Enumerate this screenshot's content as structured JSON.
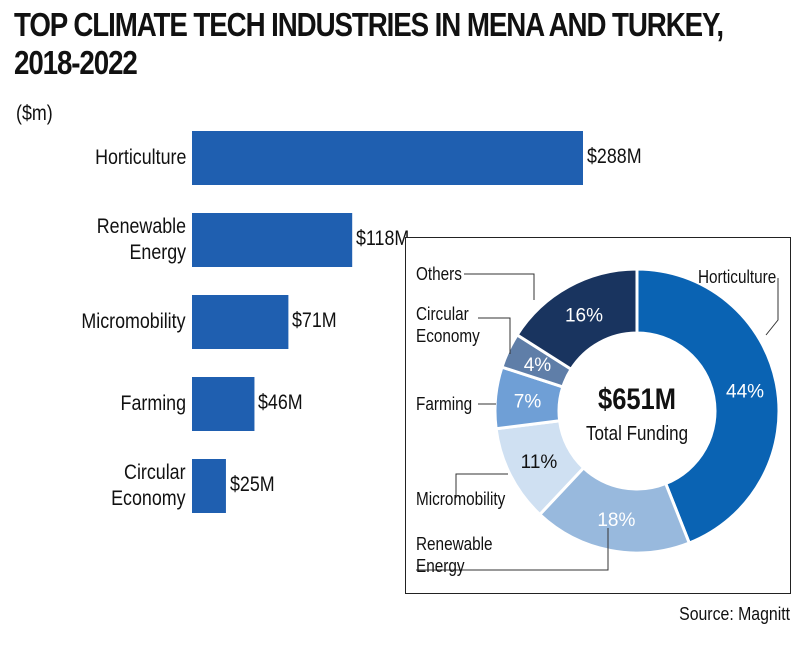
{
  "chart_data": [
    {
      "type": "bar",
      "orientation": "horizontal",
      "title_lines": [
        "TOP CLIMATE TECH INDUSTRIES IN MENA AND TURKEY,",
        "2018-2022"
      ],
      "unit": "($m)",
      "categories": [
        {
          "lines": [
            "Horticulture"
          ]
        },
        {
          "lines": [
            "Renewable",
            "Energy"
          ]
        },
        {
          "lines": [
            "Micromobility"
          ]
        },
        {
          "lines": [
            "Farming"
          ]
        },
        {
          "lines": [
            "Circular",
            "Economy"
          ]
        }
      ],
      "values": [
        288,
        118,
        71,
        46,
        25
      ],
      "value_labels": [
        "$288M",
        "$118M",
        "$71M",
        "$46M",
        "$25M"
      ],
      "bar_color": "#1f5fb0",
      "grid": false
    },
    {
      "type": "pie",
      "style": "donut",
      "center_value": "$651M",
      "center_label": "Total Funding",
      "slices": [
        {
          "label_lines": [
            "Horticulture"
          ],
          "value": 44,
          "pct_label": "44%",
          "color": "#0a63b3"
        },
        {
          "label_lines": [
            "Renewable",
            "Energy"
          ],
          "value": 18,
          "pct_label": "18%",
          "color": "#98b9dd"
        },
        {
          "label_lines": [
            "Micromobility"
          ],
          "value": 11,
          "pct_label": "11%",
          "color": "#cfe0f2"
        },
        {
          "label_lines": [
            "Farming"
          ],
          "value": 7,
          "pct_label": "7%",
          "color": "#6f9fd6"
        },
        {
          "label_lines": [
            "Circular",
            "Economy"
          ],
          "value": 4,
          "pct_label": "4%",
          "color": "#5f7ea8"
        },
        {
          "label_lines": [
            "Others"
          ],
          "value": 16,
          "pct_label": "16%",
          "color": "#19345f"
        }
      ]
    }
  ],
  "source": "Source: Magnitt"
}
